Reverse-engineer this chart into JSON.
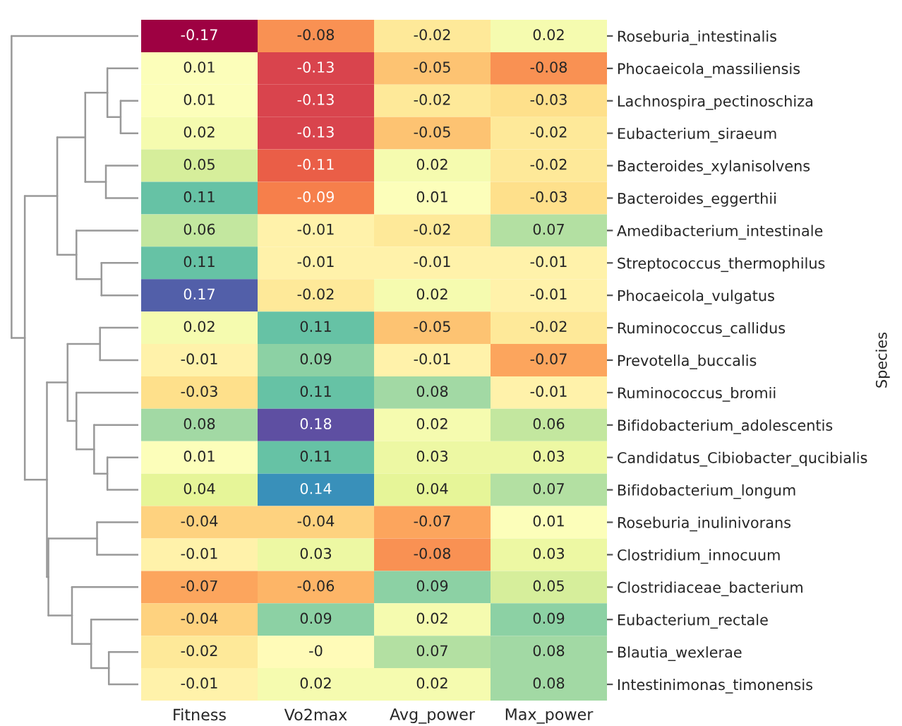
{
  "chart_data": {
    "type": "heatmap",
    "ylabel": "Species",
    "categories": [
      "Fitness",
      "Vo2max",
      "Avg_power",
      "Max_power"
    ],
    "y_categories": [
      "Roseburia_intestinalis",
      "Phocaeicola_massiliensis",
      "Lachnospira_pectinoschiza",
      "Eubacterium_siraeum",
      "Bacteroides_xylanisolvens",
      "Bacteroides_eggerthii",
      "Amedibacterium_intestinale",
      "Streptococcus_thermophilus",
      "Phocaeicola_vulgatus",
      "Ruminococcus_callidus",
      "Prevotella_buccalis",
      "Ruminococcus_bromii",
      "Bifidobacterium_adolescentis",
      "Candidatus_Cibiobacter_qucibialis",
      "Bifidobacterium_longum",
      "Roseburia_inulinivorans",
      "Clostridium_innocuum",
      "Clostridiaceae_bacterium",
      "Eubacterium_rectale",
      "Blautia_wexlerae",
      "Intestinimonas_timonensis"
    ],
    "cells": [
      [
        -0.17,
        -0.08,
        -0.02,
        0.02
      ],
      [
        0.01,
        -0.13,
        -0.05,
        -0.08
      ],
      [
        0.01,
        -0.13,
        -0.02,
        -0.03
      ],
      [
        0.02,
        -0.13,
        -0.05,
        -0.02
      ],
      [
        0.05,
        -0.11,
        0.02,
        -0.02
      ],
      [
        0.11,
        -0.09,
        0.01,
        -0.03
      ],
      [
        0.06,
        -0.01,
        -0.02,
        0.07
      ],
      [
        0.11,
        -0.01,
        -0.01,
        -0.01
      ],
      [
        0.17,
        -0.02,
        0.02,
        -0.01
      ],
      [
        0.02,
        0.11,
        -0.05,
        -0.02
      ],
      [
        -0.01,
        0.09,
        -0.01,
        -0.07
      ],
      [
        -0.03,
        0.11,
        0.08,
        -0.01
      ],
      [
        0.08,
        0.18,
        0.02,
        0.06
      ],
      [
        0.01,
        0.11,
        0.03,
        0.03
      ],
      [
        0.04,
        0.14,
        0.04,
        0.07
      ],
      [
        -0.04,
        -0.04,
        -0.07,
        0.01
      ],
      [
        -0.01,
        0.03,
        -0.08,
        0.03
      ],
      [
        -0.07,
        -0.06,
        0.09,
        0.05
      ],
      [
        -0.04,
        0.09,
        0.02,
        0.09
      ],
      [
        -0.02,
        0,
        0.07,
        0.08
      ],
      [
        -0.01,
        0.02,
        0.02,
        0.08
      ]
    ],
    "cell_labels": [
      [
        "-0.17",
        "-0.08",
        "-0.02",
        "0.02"
      ],
      [
        "0.01",
        "-0.13",
        "-0.05",
        "-0.08"
      ],
      [
        "0.01",
        "-0.13",
        "-0.02",
        "-0.03"
      ],
      [
        "0.02",
        "-0.13",
        "-0.05",
        "-0.02"
      ],
      [
        "0.05",
        "-0.11",
        "0.02",
        "-0.02"
      ],
      [
        "0.11",
        "-0.09",
        "0.01",
        "-0.03"
      ],
      [
        "0.06",
        "-0.01",
        "-0.02",
        "0.07"
      ],
      [
        "0.11",
        "-0.01",
        "-0.01",
        "-0.01"
      ],
      [
        "0.17",
        "-0.02",
        "0.02",
        "-0.01"
      ],
      [
        "0.02",
        "0.11",
        "-0.05",
        "-0.02"
      ],
      [
        "-0.01",
        "0.09",
        "-0.01",
        "-0.07"
      ],
      [
        "-0.03",
        "0.11",
        "0.08",
        "-0.01"
      ],
      [
        "0.08",
        "0.18",
        "0.02",
        "0.06"
      ],
      [
        "0.01",
        "0.11",
        "0.03",
        "0.03"
      ],
      [
        "0.04",
        "0.14",
        "0.04",
        "0.07"
      ],
      [
        "-0.04",
        "-0.04",
        "-0.07",
        "0.01"
      ],
      [
        "-0.01",
        "0.03",
        "-0.08",
        "0.03"
      ],
      [
        "-0.07",
        "-0.06",
        "0.09",
        "0.05"
      ],
      [
        "-0.04",
        "0.09",
        "0.02",
        "0.09"
      ],
      [
        "-0.02",
        "-0",
        "0.07",
        "0.08"
      ],
      [
        "-0.01",
        "0.02",
        "0.02",
        "0.08"
      ]
    ]
  }
}
